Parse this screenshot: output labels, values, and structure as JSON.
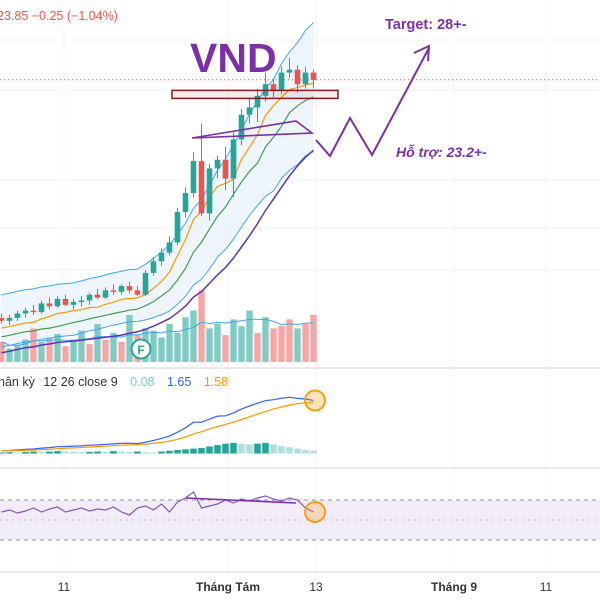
{
  "header": {
    "price_info": "23.85  −0.25 (−1.04%)",
    "price_color": "#ef5350"
  },
  "annotations": {
    "ticker": "VND",
    "target": "Target: 28+-",
    "support": "Hỗ trợ: 23.2+-",
    "accent_color": "#7b2fa8",
    "support_box_color": "#8b1a1a"
  },
  "macd_legend": {
    "name": "hân kỳ",
    "params": "12 26 close 9",
    "histogram_value": "0.08",
    "macd_value": "1.65",
    "signal_value": "1.58",
    "histogram_color": "#26a69a",
    "macd_color": "#2962ff",
    "signal_color": "#ff9800"
  },
  "x_axis": {
    "labels": [
      "11",
      "Tháng Tám",
      "13",
      "Tháng 9",
      "11"
    ]
  },
  "event_marker": "F",
  "chart_data": [
    {
      "type": "candlestick",
      "title": "VND",
      "up_color": "#26a69a",
      "down_color": "#ef5350",
      "candles": [
        {
          "o": 15.65,
          "h": 15.8,
          "l": 15.45,
          "c": 15.55
        },
        {
          "o": 15.55,
          "h": 15.75,
          "l": 15.4,
          "c": 15.65
        },
        {
          "o": 15.65,
          "h": 15.9,
          "l": 15.55,
          "c": 15.8
        },
        {
          "o": 15.8,
          "h": 16.0,
          "l": 15.65,
          "c": 15.9
        },
        {
          "o": 15.9,
          "h": 16.1,
          "l": 15.75,
          "c": 15.85
        },
        {
          "o": 15.85,
          "h": 16.25,
          "l": 15.8,
          "c": 16.15
        },
        {
          "o": 16.15,
          "h": 16.35,
          "l": 15.95,
          "c": 16.05
        },
        {
          "o": 16.05,
          "h": 16.4,
          "l": 16.0,
          "c": 16.3
        },
        {
          "o": 16.3,
          "h": 16.45,
          "l": 16.05,
          "c": 16.1
        },
        {
          "o": 16.1,
          "h": 16.3,
          "l": 15.95,
          "c": 16.2
        },
        {
          "o": 16.2,
          "h": 16.4,
          "l": 16.05,
          "c": 16.25
        },
        {
          "o": 16.25,
          "h": 16.5,
          "l": 16.1,
          "c": 16.45
        },
        {
          "o": 16.45,
          "h": 16.65,
          "l": 16.3,
          "c": 16.35
        },
        {
          "o": 16.35,
          "h": 16.7,
          "l": 16.3,
          "c": 16.6
        },
        {
          "o": 16.6,
          "h": 16.8,
          "l": 16.45,
          "c": 16.55
        },
        {
          "o": 16.55,
          "h": 16.8,
          "l": 16.45,
          "c": 16.75
        },
        {
          "o": 16.75,
          "h": 16.9,
          "l": 16.5,
          "c": 16.6
        },
        {
          "o": 16.6,
          "h": 16.75,
          "l": 16.4,
          "c": 16.45
        },
        {
          "o": 16.45,
          "h": 17.3,
          "l": 16.4,
          "c": 17.2
        },
        {
          "o": 17.2,
          "h": 17.75,
          "l": 17.1,
          "c": 17.6
        },
        {
          "o": 17.6,
          "h": 18.05,
          "l": 17.45,
          "c": 17.9
        },
        {
          "o": 17.9,
          "h": 18.45,
          "l": 17.8,
          "c": 18.25
        },
        {
          "o": 18.25,
          "h": 19.45,
          "l": 18.15,
          "c": 19.3
        },
        {
          "o": 19.3,
          "h": 20.15,
          "l": 19.1,
          "c": 19.95
        },
        {
          "o": 19.95,
          "h": 21.35,
          "l": 19.8,
          "c": 21.05
        },
        {
          "o": 21.05,
          "h": 22.35,
          "l": 19.15,
          "c": 19.25
        },
        {
          "o": 19.25,
          "h": 20.95,
          "l": 19.0,
          "c": 20.8
        },
        {
          "o": 20.8,
          "h": 21.25,
          "l": 20.45,
          "c": 21.1
        },
        {
          "o": 21.1,
          "h": 21.55,
          "l": 20.05,
          "c": 20.45
        },
        {
          "o": 20.45,
          "h": 22.05,
          "l": 19.8,
          "c": 21.8
        },
        {
          "o": 21.8,
          "h": 22.85,
          "l": 21.6,
          "c": 22.65
        },
        {
          "o": 22.65,
          "h": 23.2,
          "l": 22.35,
          "c": 22.9
        },
        {
          "o": 22.9,
          "h": 23.55,
          "l": 22.4,
          "c": 23.3
        },
        {
          "o": 23.3,
          "h": 24.1,
          "l": 23.1,
          "c": 23.7
        },
        {
          "o": 23.7,
          "h": 23.9,
          "l": 23.25,
          "c": 23.5
        },
        {
          "o": 23.5,
          "h": 24.3,
          "l": 23.35,
          "c": 24.1
        },
        {
          "o": 24.1,
          "h": 24.6,
          "l": 23.9,
          "c": 24.2
        },
        {
          "o": 24.2,
          "h": 24.35,
          "l": 23.4,
          "c": 23.7
        },
        {
          "o": 23.7,
          "h": 24.3,
          "l": 23.55,
          "c": 24.1
        },
        {
          "o": 24.1,
          "h": 24.2,
          "l": 23.55,
          "c": 23.85
        }
      ],
      "ylim": [
        14.2,
        26.6
      ]
    },
    {
      "type": "bar",
      "title": "Volume",
      "ylim": [
        0,
        100
      ],
      "values": [
        18,
        12,
        15,
        20,
        30,
        18,
        22,
        25,
        14,
        20,
        28,
        16,
        34,
        20,
        26,
        18,
        42,
        24,
        30,
        28,
        22,
        34,
        26,
        40,
        46,
        64,
        30,
        34,
        24,
        38,
        32,
        46,
        26,
        40,
        30,
        32,
        38,
        30,
        34,
        42
      ],
      "directions": [
        "d",
        "u",
        "u",
        "u",
        "d",
        "u",
        "d",
        "u",
        "d",
        "u",
        "u",
        "d",
        "u",
        "d",
        "u",
        "d",
        "u",
        "d",
        "u",
        "u",
        "u",
        "u",
        "u",
        "u",
        "u",
        "d",
        "u",
        "u",
        "d",
        "u",
        "u",
        "u",
        "d",
        "u",
        "d",
        "d",
        "d",
        "u",
        "d",
        "d"
      ]
    },
    {
      "type": "bar",
      "title": "MACD histogram",
      "ylim": [
        -0.35,
        2.3
      ],
      "values": [
        0.03,
        0.04,
        0.03,
        0.05,
        0.06,
        0.05,
        0.06,
        0.07,
        0.06,
        0.05,
        0.04,
        0.05,
        0.06,
        0.05,
        0.07,
        0.06,
        0.05,
        0.06,
        0.04,
        0.03,
        0.06,
        0.08,
        0.1,
        0.12,
        0.14,
        0.16,
        0.2,
        0.24,
        0.28,
        0.3,
        0.28,
        0.26,
        0.28,
        0.3,
        0.26,
        0.22,
        0.18,
        0.14,
        0.1,
        0.08
      ]
    },
    {
      "type": "line",
      "title": "RSI",
      "ylim": [
        0,
        100
      ],
      "band": [
        30,
        70
      ],
      "values": [
        58,
        60,
        57,
        59,
        62,
        58,
        61,
        63,
        58,
        60,
        62,
        59,
        61,
        60,
        63,
        58,
        55,
        62,
        64,
        60,
        66,
        58,
        68,
        72,
        78,
        62,
        64,
        66,
        70,
        67,
        71,
        69,
        72,
        74,
        71,
        69,
        72,
        70,
        62,
        58
      ]
    }
  ]
}
